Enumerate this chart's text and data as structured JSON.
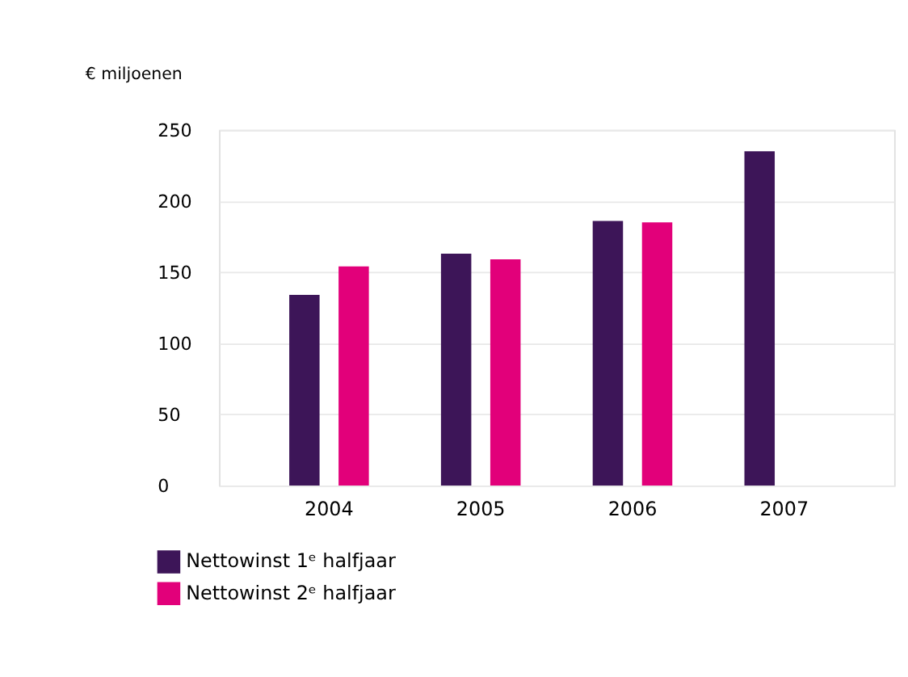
{
  "chart_data": {
    "type": "bar",
    "ylabel": "€ miljoenen",
    "categories": [
      "2004",
      "2005",
      "2006",
      "2007"
    ],
    "series": [
      {
        "name": "Nettowinst 1ᵉ halfjaar",
        "color": "#3d1558",
        "values": [
          134,
          163,
          186,
          235
        ]
      },
      {
        "name": "Nettowinst 2ᵉ halfjaar",
        "color": "#e2007a",
        "values": [
          154,
          159,
          185,
          null
        ]
      }
    ],
    "ylim": [
      0,
      250
    ],
    "yticks": [
      0,
      50,
      100,
      150,
      200,
      250
    ],
    "grid": "y",
    "legend": "bottom left"
  }
}
